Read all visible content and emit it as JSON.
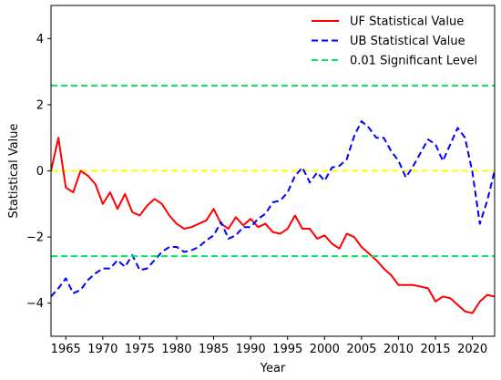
{
  "chart_data": {
    "type": "line",
    "title": "",
    "xlabel": "Year",
    "ylabel": "Statistical Value",
    "xlim": [
      1963,
      2023
    ],
    "ylim": [
      -5,
      5
    ],
    "xticks": [
      1965,
      1970,
      1975,
      1980,
      1985,
      1990,
      1995,
      2000,
      2005,
      2010,
      2015,
      2020
    ],
    "yticks": [
      -4,
      -2,
      0,
      2,
      4
    ],
    "grid": false,
    "legend_position": "top-right",
    "series": [
      {
        "name": "UF Statistical Value",
        "color": "#ff0000",
        "style": "solid",
        "x": [
          1963,
          1964,
          1965,
          1966,
          1967,
          1968,
          1969,
          1970,
          1971,
          1972,
          1973,
          1974,
          1975,
          1976,
          1977,
          1978,
          1979,
          1980,
          1981,
          1982,
          1983,
          1984,
          1985,
          1986,
          1987,
          1988,
          1989,
          1990,
          1991,
          1992,
          1993,
          1994,
          1995,
          1996,
          1997,
          1998,
          1999,
          2000,
          2001,
          2002,
          2003,
          2004,
          2005,
          2006,
          2007,
          2008,
          2009,
          2010,
          2011,
          2012,
          2013,
          2014,
          2015,
          2016,
          2017,
          2018,
          2019,
          2020,
          2021,
          2022,
          2023
        ],
        "values": [
          0.0,
          1.0,
          -0.5,
          -0.65,
          0.0,
          -0.15,
          -0.4,
          -1.0,
          -0.65,
          -1.15,
          -0.7,
          -1.25,
          -1.35,
          -1.05,
          -0.85,
          -1.0,
          -1.35,
          -1.6,
          -1.75,
          -1.7,
          -1.6,
          -1.5,
          -1.15,
          -1.6,
          -1.75,
          -1.4,
          -1.65,
          -1.45,
          -1.7,
          -1.6,
          -1.85,
          -1.9,
          -1.75,
          -1.35,
          -1.75,
          -1.75,
          -2.05,
          -1.95,
          -2.2,
          -2.35,
          -1.9,
          -2.0,
          -2.3,
          -2.5,
          -2.7,
          -2.95,
          -3.15,
          -3.45,
          -3.45,
          -3.45,
          -3.5,
          -3.55,
          -3.95,
          -3.8,
          -3.85,
          -4.05,
          -4.25,
          -4.3,
          -3.95,
          -3.75,
          -3.8
        ]
      },
      {
        "name": "UB Statistical Value",
        "color": "#0000ff",
        "style": "dashed",
        "x": [
          1963,
          1964,
          1965,
          1966,
          1967,
          1968,
          1969,
          1970,
          1971,
          1972,
          1973,
          1974,
          1975,
          1976,
          1977,
          1978,
          1979,
          1980,
          1981,
          1982,
          1983,
          1984,
          1985,
          1986,
          1987,
          1988,
          1989,
          1990,
          1991,
          1992,
          1993,
          1994,
          1995,
          1996,
          1997,
          1998,
          1999,
          2000,
          2001,
          2002,
          2003,
          2004,
          2005,
          2006,
          2007,
          2008,
          2009,
          2010,
          2011,
          2012,
          2013,
          2014,
          2015,
          2016,
          2017,
          2018,
          2019,
          2020,
          2021,
          2022,
          2023
        ],
        "values": [
          -3.8,
          -3.55,
          -3.25,
          -3.7,
          -3.6,
          -3.3,
          -3.1,
          -2.95,
          -2.95,
          -2.7,
          -2.9,
          -2.55,
          -3.0,
          -2.95,
          -2.7,
          -2.45,
          -2.3,
          -2.3,
          -2.45,
          -2.4,
          -2.3,
          -2.1,
          -1.95,
          -1.55,
          -2.05,
          -1.95,
          -1.7,
          -1.7,
          -1.45,
          -1.3,
          -0.95,
          -0.9,
          -0.65,
          -0.15,
          0.1,
          -0.35,
          -0.05,
          -0.3,
          0.1,
          0.15,
          0.35,
          1.05,
          1.5,
          1.3,
          1.0,
          1.0,
          0.6,
          0.3,
          -0.2,
          0.15,
          0.55,
          0.95,
          0.8,
          0.3,
          0.8,
          1.3,
          1.0,
          -0.05,
          -1.6,
          -0.9,
          0.0
        ]
      },
      {
        "name": "0.01 Significant Level",
        "color": "#00e564",
        "style": "dashed",
        "horizontal_lines": [
          2.58,
          -2.58
        ]
      }
    ],
    "reference_lines": [
      {
        "y": 0,
        "color": "#ffff00",
        "style": "dashed"
      }
    ]
  }
}
